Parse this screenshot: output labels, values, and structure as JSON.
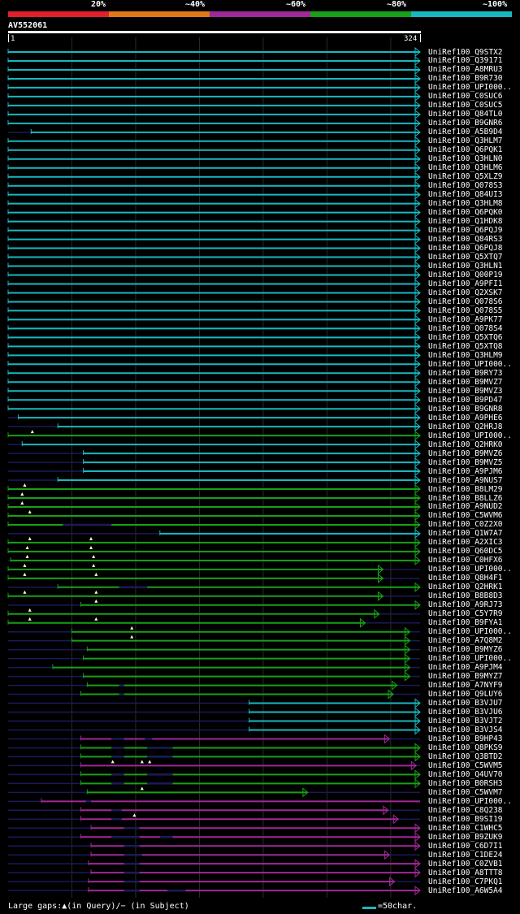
{
  "header": {
    "pct_labels": [
      "20%",
      "~40%",
      "~60%",
      "~80%",
      "~100%"
    ],
    "pct_colors": [
      "#e0202a",
      "#e07818",
      "#a02898",
      "#18a018",
      "#18b8c0"
    ],
    "query_id": "AV552061",
    "ruler_start": "1",
    "ruler_end": "324"
  },
  "footer": {
    "legend": "Large gaps:▲(in Query)/− (in Subject)",
    "scale": "=50char."
  },
  "chart_data": {
    "type": "alignment",
    "query_length": 324,
    "scale_chars_per_bar": 50,
    "hits": [
      {
        "label": "UniRef100_Q9STX2",
        "start": 1,
        "end": 324,
        "c": "cyan",
        "arrow": true
      },
      {
        "label": "UniRef100_Q39171",
        "start": 1,
        "end": 324,
        "c": "cyan",
        "arrow": true
      },
      {
        "label": "UniRef100_A8MRU3",
        "start": 1,
        "end": 324,
        "c": "cyan",
        "arrow": true
      },
      {
        "label": "UniRef100_B9R730",
        "start": 1,
        "end": 324,
        "c": "cyan",
        "arrow": true
      },
      {
        "label": "UniRef100_UPI000..",
        "start": 1,
        "end": 324,
        "c": "cyan",
        "arrow": true
      },
      {
        "label": "UniRef100_C0SUC6",
        "start": 1,
        "end": 324,
        "c": "cyan",
        "arrow": true
      },
      {
        "label": "UniRef100_C0SUC5",
        "start": 1,
        "end": 324,
        "c": "cyan",
        "arrow": true
      },
      {
        "label": "UniRef100_Q84TL0",
        "start": 1,
        "end": 324,
        "c": "cyan",
        "arrow": true
      },
      {
        "label": "UniRef100_B9GNR6",
        "start": 1,
        "end": 324,
        "c": "cyan",
        "arrow": true
      },
      {
        "label": "UniRef100_A5B9D4",
        "start": 19,
        "end": 324,
        "c": "cyan",
        "arrow": true
      },
      {
        "label": "UniRef100_Q3HLM7",
        "start": 1,
        "end": 324,
        "c": "cyan",
        "arrow": true
      },
      {
        "label": "UniRef100_Q6PQK1",
        "start": 1,
        "end": 324,
        "c": "cyan",
        "arrow": true
      },
      {
        "label": "UniRef100_Q3HLN0",
        "start": 1,
        "end": 324,
        "c": "cyan",
        "arrow": true
      },
      {
        "label": "UniRef100_Q3HLM6",
        "start": 1,
        "end": 324,
        "c": "cyan",
        "arrow": true
      },
      {
        "label": "UniRef100_Q5XLZ9",
        "start": 1,
        "end": 324,
        "c": "cyan",
        "arrow": true
      },
      {
        "label": "UniRef100_Q078S3",
        "start": 1,
        "end": 324,
        "c": "cyan",
        "arrow": true
      },
      {
        "label": "UniRef100_Q84UI3",
        "start": 1,
        "end": 324,
        "c": "cyan",
        "arrow": true
      },
      {
        "label": "UniRef100_Q3HLM8",
        "start": 1,
        "end": 324,
        "c": "cyan",
        "arrow": true
      },
      {
        "label": "UniRef100_Q6PQK0",
        "start": 1,
        "end": 324,
        "c": "cyan",
        "arrow": true
      },
      {
        "label": "UniRef100_Q1HDK8",
        "start": 1,
        "end": 324,
        "c": "cyan",
        "arrow": true
      },
      {
        "label": "UniRef100_Q6PQJ9",
        "start": 1,
        "end": 324,
        "c": "cyan",
        "arrow": true
      },
      {
        "label": "UniRef100_Q84RS3",
        "start": 1,
        "end": 324,
        "c": "cyan",
        "arrow": true
      },
      {
        "label": "UniRef100_Q6PQJ8",
        "start": 1,
        "end": 324,
        "c": "cyan",
        "arrow": true
      },
      {
        "label": "UniRef100_Q5XTQ7",
        "start": 1,
        "end": 324,
        "c": "cyan",
        "arrow": true
      },
      {
        "label": "UniRef100_Q3HLN1",
        "start": 1,
        "end": 324,
        "c": "cyan",
        "arrow": true
      },
      {
        "label": "UniRef100_Q00P19",
        "start": 1,
        "end": 324,
        "c": "cyan",
        "arrow": true
      },
      {
        "label": "UniRef100_A9PFI1",
        "start": 1,
        "end": 324,
        "c": "cyan",
        "arrow": true
      },
      {
        "label": "UniRef100_Q2XSK7",
        "start": 1,
        "end": 324,
        "c": "cyan",
        "arrow": true
      },
      {
        "label": "UniRef100_Q078S6",
        "start": 1,
        "end": 324,
        "c": "cyan",
        "arrow": true
      },
      {
        "label": "UniRef100_Q078S5",
        "start": 1,
        "end": 324,
        "c": "cyan",
        "arrow": true
      },
      {
        "label": "UniRef100_A9PK77",
        "start": 1,
        "end": 324,
        "c": "cyan",
        "arrow": true
      },
      {
        "label": "UniRef100_Q078S4",
        "start": 1,
        "end": 324,
        "c": "cyan",
        "arrow": true
      },
      {
        "label": "UniRef100_Q5XTQ6",
        "start": 1,
        "end": 324,
        "c": "cyan",
        "arrow": true
      },
      {
        "label": "UniRef100_Q5XTQ8",
        "start": 1,
        "end": 324,
        "c": "cyan",
        "arrow": true
      },
      {
        "label": "UniRef100_Q3HLM9",
        "start": 1,
        "end": 324,
        "c": "cyan",
        "arrow": true
      },
      {
        "label": "UniRef100_UPI000..",
        "start": 1,
        "end": 324,
        "c": "cyan",
        "arrow": true
      },
      {
        "label": "UniRef100_B9RY73",
        "start": 1,
        "end": 324,
        "c": "cyan",
        "arrow": true
      },
      {
        "label": "UniRef100_B9MVZ7",
        "start": 1,
        "end": 324,
        "c": "cyan",
        "arrow": true
      },
      {
        "label": "UniRef100_B9MVZ3",
        "start": 1,
        "end": 324,
        "c": "cyan",
        "arrow": true
      },
      {
        "label": "UniRef100_B9PD47",
        "start": 1,
        "end": 324,
        "c": "cyan",
        "arrow": true
      },
      {
        "label": "UniRef100_B9GNR8",
        "start": 1,
        "end": 324,
        "c": "cyan",
        "arrow": true
      },
      {
        "label": "UniRef100_A9PHE6",
        "start": 9,
        "end": 324,
        "c": "cyan",
        "arrow": true
      },
      {
        "label": "UniRef100_Q2HRJ8",
        "start": 40,
        "end": 324,
        "c": "cyan",
        "arrow": true
      },
      {
        "label": "UniRef100_UPI000..",
        "start": 1,
        "end": 324,
        "c": "green",
        "arrow": true,
        "ins": [
          20
        ]
      },
      {
        "label": "UniRef100_Q2HRK0",
        "start": 12,
        "end": 324,
        "c": "cyan",
        "arrow": true
      },
      {
        "label": "UniRef100_B9MVZ6",
        "start": 60,
        "end": 324,
        "c": "cyan",
        "arrow": true
      },
      {
        "label": "UniRef100_B9MVZ5",
        "start": 60,
        "end": 324,
        "c": "cyan",
        "arrow": true
      },
      {
        "label": "UniRef100_A9PJM6",
        "start": 60,
        "end": 324,
        "c": "cyan",
        "arrow": true
      },
      {
        "label": "UniRef100_A9NUS7",
        "start": 40,
        "end": 324,
        "c": "cyan",
        "arrow": true
      },
      {
        "label": "UniRef100_B8LM29",
        "start": 1,
        "end": 324,
        "c": "green",
        "arrow": true,
        "ins": [
          14
        ]
      },
      {
        "label": "UniRef100_B8LLZ6",
        "start": 1,
        "end": 324,
        "c": "green",
        "arrow": true,
        "ins": [
          12
        ]
      },
      {
        "label": "UniRef100_A9NUD2",
        "start": 1,
        "end": 324,
        "c": "green",
        "arrow": true,
        "ins": [
          12
        ]
      },
      {
        "label": "UniRef100_C5WVM6",
        "start": 1,
        "end": 324,
        "c": "green",
        "arrow": true,
        "ins": [
          18
        ]
      },
      {
        "label": "UniRef100_C0Z2X0",
        "start": 1,
        "end": 324,
        "c": "green",
        "arrow": true,
        "gaps": [
          [
            44,
            82
          ]
        ]
      },
      {
        "label": "UniRef100_Q1W7A7",
        "start": 120,
        "end": 324,
        "c": "cyan",
        "arrow": true
      },
      {
        "label": "UniRef100_A2XIC3",
        "start": 1,
        "end": 324,
        "c": "green",
        "arrow": true,
        "ins": [
          18,
          66
        ]
      },
      {
        "label": "UniRef100_Q60DC5",
        "start": 1,
        "end": 324,
        "c": "green",
        "arrow": true,
        "ins": [
          16,
          66
        ]
      },
      {
        "label": "UniRef100_C0HFX6",
        "start": 3,
        "end": 324,
        "c": "green",
        "arrow": true,
        "ins": [
          16,
          68
        ]
      },
      {
        "label": "UniRef100_UPI000..",
        "start": 1,
        "end": 295,
        "c": "green",
        "arrow": true,
        "ins": [
          14,
          68
        ]
      },
      {
        "label": "UniRef100_Q8H4F1",
        "start": 1,
        "end": 295,
        "c": "green",
        "arrow": true,
        "ins": [
          14,
          70
        ]
      },
      {
        "label": "UniRef100_Q2HRK1",
        "start": 40,
        "end": 324,
        "c": "green",
        "arrow": true,
        "gaps": [
          [
            88,
            110
          ]
        ]
      },
      {
        "label": "UniRef100_B8B8D3",
        "start": 1,
        "end": 295,
        "c": "green",
        "arrow": true,
        "ins": [
          14,
          70
        ]
      },
      {
        "label": "UniRef100_A9RJ73",
        "start": 58,
        "end": 324,
        "c": "green",
        "arrow": true,
        "ins": [
          70
        ]
      },
      {
        "label": "UniRef100_C5Y7R9",
        "start": 1,
        "end": 292,
        "c": "green",
        "arrow": true,
        "ins": [
          18
        ]
      },
      {
        "label": "UniRef100_B9FYA1",
        "start": 1,
        "end": 281,
        "c": "green",
        "arrow": true,
        "ins": [
          18,
          70
        ]
      },
      {
        "label": "UniRef100_UPI000..",
        "start": 51,
        "end": 316,
        "c": "green",
        "arrow": true,
        "ins": [
          98
        ]
      },
      {
        "label": "UniRef100_A7Q8M2",
        "start": 51,
        "end": 316,
        "c": "green",
        "arrow": true,
        "ins": [
          98
        ]
      },
      {
        "label": "UniRef100_B9MYZ6",
        "start": 63,
        "end": 316,
        "c": "green",
        "arrow": true
      },
      {
        "label": "UniRef100_UPI000..",
        "start": 60,
        "end": 316,
        "c": "green",
        "arrow": true
      },
      {
        "label": "UniRef100_A9PJM4",
        "start": 36,
        "end": 316,
        "c": "green",
        "arrow": true
      },
      {
        "label": "UniRef100_B9MYZ7",
        "start": 60,
        "end": 316,
        "c": "green",
        "arrow": true
      },
      {
        "label": "UniRef100_A7NYF9",
        "start": 63,
        "end": 306,
        "c": "green",
        "arrow": true,
        "gaps": [
          [
            88,
            92
          ]
        ]
      },
      {
        "label": "UniRef100_Q9LUY6",
        "start": 58,
        "end": 303,
        "c": "green",
        "arrow": true,
        "gaps": [
          [
            88,
            92
          ]
        ]
      },
      {
        "label": "UniRef100_B3VJU7",
        "start": 190,
        "end": 324,
        "c": "cyan",
        "arrow": true
      },
      {
        "label": "UniRef100_B3VJU6",
        "start": 190,
        "end": 324,
        "c": "cyan",
        "arrow": true
      },
      {
        "label": "UniRef100_B3VJT2",
        "start": 190,
        "end": 324,
        "c": "cyan",
        "arrow": true
      },
      {
        "label": "UniRef100_B3VJS4",
        "start": 190,
        "end": 324,
        "c": "cyan",
        "arrow": true
      },
      {
        "label": "UniRef100_B9HP43",
        "start": 58,
        "end": 300,
        "c": "purple",
        "arrow": true,
        "gaps": [
          [
            82,
            92
          ],
          [
            108,
            114
          ]
        ]
      },
      {
        "label": "UniRef100_Q8PKS9",
        "start": 58,
        "end": 324,
        "c": "green",
        "arrow": true,
        "gaps": [
          [
            82,
            92
          ],
          [
            110,
            130
          ]
        ]
      },
      {
        "label": "UniRef100_Q3BTD2",
        "start": 58,
        "end": 324,
        "c": "green",
        "arrow": true,
        "gaps": [
          [
            82,
            92
          ],
          [
            110,
            130
          ]
        ]
      },
      {
        "label": "UniRef100_C5WVM5",
        "start": 58,
        "end": 321,
        "c": "purple",
        "arrow": true,
        "ins": [
          83,
          106,
          112
        ]
      },
      {
        "label": "UniRef100_Q4UV70",
        "start": 58,
        "end": 324,
        "c": "green",
        "arrow": true,
        "gaps": [
          [
            82,
            92
          ],
          [
            110,
            130
          ]
        ]
      },
      {
        "label": "UniRef100_B0RSH3",
        "start": 58,
        "end": 324,
        "c": "green",
        "arrow": true,
        "gaps": [
          [
            82,
            92
          ],
          [
            110,
            130
          ]
        ]
      },
      {
        "label": "UniRef100_C5WVM7",
        "start": 63,
        "end": 236,
        "c": "green",
        "arrow": true,
        "ins": [
          106
        ]
      },
      {
        "label": "UniRef100_UPI000..",
        "start": 27,
        "end": 324,
        "c": "purple",
        "arrow": false,
        "gaps": [
          [
            62,
            66
          ]
        ]
      },
      {
        "label": "UniRef100_C8Q238",
        "start": 58,
        "end": 299,
        "c": "purple",
        "arrow": true,
        "gaps": [
          [
            82,
            90
          ]
        ]
      },
      {
        "label": "UniRef100_B9SI19",
        "start": 58,
        "end": 307,
        "c": "purple",
        "arrow": true,
        "ins": [
          100
        ],
        "gaps": [
          [
            82,
            90
          ]
        ]
      },
      {
        "label": "UniRef100_C1WHC5",
        "start": 66,
        "end": 324,
        "c": "purple",
        "arrow": true,
        "gaps": [
          [
            92,
            104
          ]
        ]
      },
      {
        "label": "UniRef100_B9ZUK9",
        "start": 58,
        "end": 324,
        "c": "purple",
        "arrow": true,
        "gaps": [
          [
            82,
            104
          ],
          [
            120,
            130
          ]
        ]
      },
      {
        "label": "UniRef100_C6D7I1",
        "start": 66,
        "end": 324,
        "c": "purple",
        "arrow": true,
        "gaps": [
          [
            92,
            104
          ]
        ]
      },
      {
        "label": "UniRef100_C1DE24",
        "start": 66,
        "end": 300,
        "c": "purple",
        "arrow": true,
        "gaps": [
          [
            92,
            106
          ]
        ]
      },
      {
        "label": "UniRef100_C0ZVB1",
        "start": 64,
        "end": 324,
        "c": "purple",
        "arrow": true,
        "gaps": [
          [
            92,
            104
          ]
        ]
      },
      {
        "label": "UniRef100_A8TTT8",
        "start": 66,
        "end": 324,
        "c": "purple",
        "arrow": true,
        "gaps": [
          [
            92,
            104
          ]
        ]
      },
      {
        "label": "UniRef100_C7PKQ1",
        "start": 64,
        "end": 304,
        "c": "purple",
        "arrow": true,
        "gaps": [
          [
            92,
            104
          ]
        ]
      },
      {
        "label": "UniRef100_A6W5A4",
        "start": 64,
        "end": 324,
        "c": "purple",
        "arrow": true,
        "gaps": [
          [
            92,
            104
          ],
          [
            126,
            140
          ]
        ]
      }
    ]
  }
}
